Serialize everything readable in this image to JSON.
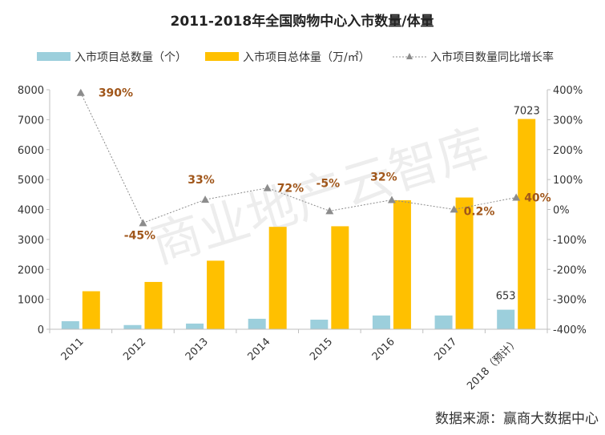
{
  "chart_data": {
    "type": "bar",
    "title": "2011-2018年全国购物中心入市数量/体量",
    "categories": [
      "2011",
      "2012",
      "2013",
      "2014",
      "2015",
      "2016",
      "2017",
      "2018（预计）"
    ],
    "series": [
      {
        "name": "入市项目总数量（个）",
        "kind": "bar",
        "axis": "left",
        "color": "#9ccfdc",
        "values": [
          270,
          140,
          190,
          350,
          320,
          460,
          460,
          653
        ]
      },
      {
        "name": "入市项目总体量（万/㎡）",
        "kind": "bar",
        "axis": "left",
        "color": "#ffc000",
        "values": [
          1270,
          1580,
          2290,
          3420,
          3440,
          4310,
          4400,
          7023
        ]
      },
      {
        "name": "入市项目数量同比增长率",
        "kind": "line",
        "axis": "right",
        "color": "#8c8c8c",
        "values": [
          390,
          -45,
          33,
          72,
          -5,
          32,
          0.2,
          40
        ],
        "labels": [
          "390%",
          "-45%",
          "33%",
          "72%",
          "-5%",
          "32%",
          "0.2%",
          "40%"
        ]
      }
    ],
    "data_labels": {
      "count_2018": "653",
      "volume_2018": "7023"
    },
    "y_left": {
      "min": 0,
      "max": 8000,
      "ticks": [
        "0",
        "1000",
        "2000",
        "3000",
        "4000",
        "5000",
        "6000",
        "7000",
        "8000"
      ]
    },
    "y_right": {
      "min": -400,
      "max": 400,
      "ticks": [
        "-400%",
        "-300%",
        "-200%",
        "-100%",
        "0%",
        "100%",
        "200%",
        "300%",
        "400%"
      ]
    },
    "legend_position": "top",
    "grid": false,
    "label_color": "#a0561a"
  },
  "watermark": "商业地产云智库",
  "footer": "数据来源：赢商大数据中心"
}
